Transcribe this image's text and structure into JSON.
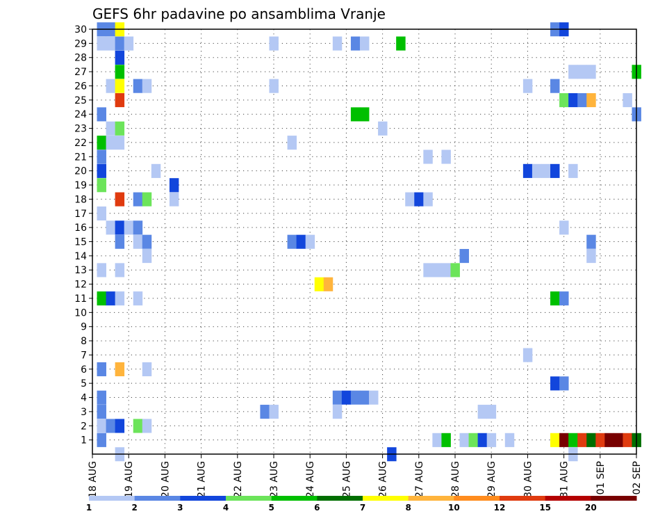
{
  "chart_data": {
    "type": "heatmap",
    "title": "GEFS 6hr padavine po ansamblima Vranje",
    "xlabel": "",
    "ylabel": "",
    "x_ticks": [
      "18 AUG",
      "19 AUG",
      "20 AUG",
      "21 AUG",
      "22 AUG",
      "23 AUG",
      "24 AUG",
      "25 AUG",
      "26 AUG",
      "27 AUG",
      "28 AUG",
      "29 AUG",
      "30 AUG",
      "31 AUG",
      "01 SEP",
      "02 SEP"
    ],
    "x_range_steps": [
      0,
      60
    ],
    "x_step_hours": 6,
    "y_ticks": [
      1,
      2,
      3,
      4,
      5,
      6,
      7,
      8,
      9,
      10,
      11,
      12,
      13,
      14,
      15,
      16,
      17,
      18,
      19,
      20,
      21,
      22,
      23,
      24,
      25,
      26,
      27,
      28,
      29,
      30
    ],
    "y_range": [
      0,
      30
    ],
    "grid": true,
    "legend": {
      "placement": "bottom",
      "labels": [
        "1",
        "2",
        "3",
        "4",
        "5",
        "6",
        "7",
        "8",
        "10",
        "12",
        "15",
        "20"
      ],
      "colors": [
        "#b4c8f4",
        "#5a87e4",
        "#1246dc",
        "#6ce45a",
        "#00bf00",
        "#006e00",
        "#ffff00",
        "#ffb43c",
        "#ff8c1e",
        "#e03b0f",
        "#b40000",
        "#780000"
      ]
    },
    "cells": [
      {
        "y": 30,
        "x": 1,
        "v": 2
      },
      {
        "y": 30,
        "x": 2,
        "v": 2
      },
      {
        "y": 30,
        "x": 3,
        "v": 7
      },
      {
        "y": 30,
        "x": 51,
        "v": 2
      },
      {
        "y": 30,
        "x": 52,
        "v": 3
      },
      {
        "y": 29,
        "x": 1,
        "v": 1
      },
      {
        "y": 29,
        "x": 2,
        "v": 1
      },
      {
        "y": 29,
        "x": 3,
        "v": 2
      },
      {
        "y": 29,
        "x": 4,
        "v": 1
      },
      {
        "y": 29,
        "x": 20,
        "v": 1
      },
      {
        "y": 29,
        "x": 27,
        "v": 1
      },
      {
        "y": 29,
        "x": 29,
        "v": 2
      },
      {
        "y": 29,
        "x": 30,
        "v": 1
      },
      {
        "y": 29,
        "x": 34,
        "v": 5
      },
      {
        "y": 28,
        "x": 3,
        "v": 3
      },
      {
        "y": 27,
        "x": 3,
        "v": 5
      },
      {
        "y": 27,
        "x": 53,
        "v": 1
      },
      {
        "y": 27,
        "x": 54,
        "v": 1
      },
      {
        "y": 27,
        "x": 55,
        "v": 1
      },
      {
        "y": 27,
        "x": 60,
        "v": 5
      },
      {
        "y": 26,
        "x": 2,
        "v": 1
      },
      {
        "y": 26,
        "x": 3,
        "v": 7
      },
      {
        "y": 26,
        "x": 5,
        "v": 2
      },
      {
        "y": 26,
        "x": 6,
        "v": 1
      },
      {
        "y": 26,
        "x": 20,
        "v": 1
      },
      {
        "y": 26,
        "x": 48,
        "v": 1
      },
      {
        "y": 26,
        "x": 51,
        "v": 2
      },
      {
        "y": 25,
        "x": 3,
        "v": 12
      },
      {
        "y": 25,
        "x": 52,
        "v": 4
      },
      {
        "y": 25,
        "x": 53,
        "v": 3
      },
      {
        "y": 25,
        "x": 54,
        "v": 2
      },
      {
        "y": 25,
        "x": 55,
        "v": 8
      },
      {
        "y": 25,
        "x": 59,
        "v": 1
      },
      {
        "y": 24,
        "x": 1,
        "v": 2
      },
      {
        "y": 24,
        "x": 29,
        "v": 5
      },
      {
        "y": 24,
        "x": 30,
        "v": 5
      },
      {
        "y": 24,
        "x": 60,
        "v": 2
      },
      {
        "y": 23,
        "x": 2,
        "v": 1
      },
      {
        "y": 23,
        "x": 3,
        "v": 4
      },
      {
        "y": 23,
        "x": 32,
        "v": 1
      },
      {
        "y": 22,
        "x": 1,
        "v": 5
      },
      {
        "y": 22,
        "x": 2,
        "v": 1
      },
      {
        "y": 22,
        "x": 3,
        "v": 1
      },
      {
        "y": 22,
        "x": 22,
        "v": 1
      },
      {
        "y": 21,
        "x": 1,
        "v": 2
      },
      {
        "y": 21,
        "x": 37,
        "v": 1
      },
      {
        "y": 21,
        "x": 39,
        "v": 1
      },
      {
        "y": 20,
        "x": 1,
        "v": 3
      },
      {
        "y": 20,
        "x": 7,
        "v": 1
      },
      {
        "y": 20,
        "x": 48,
        "v": 3
      },
      {
        "y": 20,
        "x": 49,
        "v": 1
      },
      {
        "y": 20,
        "x": 50,
        "v": 1
      },
      {
        "y": 20,
        "x": 51,
        "v": 3
      },
      {
        "y": 20,
        "x": 53,
        "v": 1
      },
      {
        "y": 19,
        "x": 1,
        "v": 4
      },
      {
        "y": 19,
        "x": 9,
        "v": 3
      },
      {
        "y": 18,
        "x": 3,
        "v": 12
      },
      {
        "y": 18,
        "x": 5,
        "v": 2
      },
      {
        "y": 18,
        "x": 6,
        "v": 4
      },
      {
        "y": 18,
        "x": 9,
        "v": 1
      },
      {
        "y": 18,
        "x": 35,
        "v": 1
      },
      {
        "y": 18,
        "x": 36,
        "v": 3
      },
      {
        "y": 18,
        "x": 37,
        "v": 1
      },
      {
        "y": 17,
        "x": 1,
        "v": 1
      },
      {
        "y": 16,
        "x": 2,
        "v": 1
      },
      {
        "y": 16,
        "x": 3,
        "v": 3
      },
      {
        "y": 16,
        "x": 4,
        "v": 1
      },
      {
        "y": 16,
        "x": 5,
        "v": 2
      },
      {
        "y": 16,
        "x": 52,
        "v": 1
      },
      {
        "y": 15,
        "x": 3,
        "v": 2
      },
      {
        "y": 15,
        "x": 5,
        "v": 1
      },
      {
        "y": 15,
        "x": 6,
        "v": 2
      },
      {
        "y": 15,
        "x": 22,
        "v": 2
      },
      {
        "y": 15,
        "x": 23,
        "v": 3
      },
      {
        "y": 15,
        "x": 24,
        "v": 1
      },
      {
        "y": 15,
        "x": 55,
        "v": 2
      },
      {
        "y": 14,
        "x": 6,
        "v": 1
      },
      {
        "y": 14,
        "x": 41,
        "v": 2
      },
      {
        "y": 14,
        "x": 55,
        "v": 1
      },
      {
        "y": 13,
        "x": 1,
        "v": 1
      },
      {
        "y": 13,
        "x": 3,
        "v": 1
      },
      {
        "y": 13,
        "x": 37,
        "v": 1
      },
      {
        "y": 13,
        "x": 38,
        "v": 1
      },
      {
        "y": 13,
        "x": 39,
        "v": 1
      },
      {
        "y": 13,
        "x": 40,
        "v": 4
      },
      {
        "y": 12,
        "x": 25,
        "v": 7
      },
      {
        "y": 12,
        "x": 26,
        "v": 8
      },
      {
        "y": 11,
        "x": 1,
        "v": 5
      },
      {
        "y": 11,
        "x": 2,
        "v": 3
      },
      {
        "y": 11,
        "x": 3,
        "v": 1
      },
      {
        "y": 11,
        "x": 5,
        "v": 1
      },
      {
        "y": 11,
        "x": 51,
        "v": 5
      },
      {
        "y": 11,
        "x": 52,
        "v": 2
      },
      {
        "y": 7,
        "x": 48,
        "v": 1
      },
      {
        "y": 6,
        "x": 1,
        "v": 2
      },
      {
        "y": 6,
        "x": 3,
        "v": 8
      },
      {
        "y": 6,
        "x": 6,
        "v": 1
      },
      {
        "y": 5,
        "x": 51,
        "v": 3
      },
      {
        "y": 5,
        "x": 52,
        "v": 2
      },
      {
        "y": 4,
        "x": 1,
        "v": 2
      },
      {
        "y": 4,
        "x": 27,
        "v": 2
      },
      {
        "y": 4,
        "x": 28,
        "v": 3
      },
      {
        "y": 4,
        "x": 29,
        "v": 2
      },
      {
        "y": 4,
        "x": 30,
        "v": 2
      },
      {
        "y": 4,
        "x": 31,
        "v": 1
      },
      {
        "y": 3,
        "x": 1,
        "v": 2
      },
      {
        "y": 3,
        "x": 19,
        "v": 2
      },
      {
        "y": 3,
        "x": 20,
        "v": 1
      },
      {
        "y": 3,
        "x": 27,
        "v": 1
      },
      {
        "y": 3,
        "x": 43,
        "v": 1
      },
      {
        "y": 3,
        "x": 44,
        "v": 1
      },
      {
        "y": 2,
        "x": 1,
        "v": 1
      },
      {
        "y": 2,
        "x": 2,
        "v": 2
      },
      {
        "y": 2,
        "x": 3,
        "v": 3
      },
      {
        "y": 2,
        "x": 5,
        "v": 4
      },
      {
        "y": 2,
        "x": 6,
        "v": 1
      },
      {
        "y": 1,
        "x": 1,
        "v": 2
      },
      {
        "y": 1,
        "x": 38,
        "v": 1
      },
      {
        "y": 1,
        "x": 39,
        "v": 5
      },
      {
        "y": 1,
        "x": 41,
        "v": 1
      },
      {
        "y": 1,
        "x": 42,
        "v": 4
      },
      {
        "y": 1,
        "x": 43,
        "v": 3
      },
      {
        "y": 1,
        "x": 44,
        "v": 1
      },
      {
        "y": 1,
        "x": 46,
        "v": 1
      },
      {
        "y": 1,
        "x": 51,
        "v": 7
      },
      {
        "y": 1,
        "x": 52,
        "v": 20
      },
      {
        "y": 1,
        "x": 53,
        "v": 5
      },
      {
        "y": 1,
        "x": 54,
        "v": 12
      },
      {
        "y": 1,
        "x": 55,
        "v": 6
      },
      {
        "y": 1,
        "x": 56,
        "v": 12
      },
      {
        "y": 1,
        "x": 57,
        "v": 20
      },
      {
        "y": 1,
        "x": 58,
        "v": 20
      },
      {
        "y": 1,
        "x": 59,
        "v": 12
      },
      {
        "y": 1,
        "x": 60,
        "v": 6
      },
      {
        "y": 0,
        "x": 3,
        "v": 1
      },
      {
        "y": 0,
        "x": 33,
        "v": 3
      },
      {
        "y": 0,
        "x": 53,
        "v": 1
      }
    ]
  }
}
